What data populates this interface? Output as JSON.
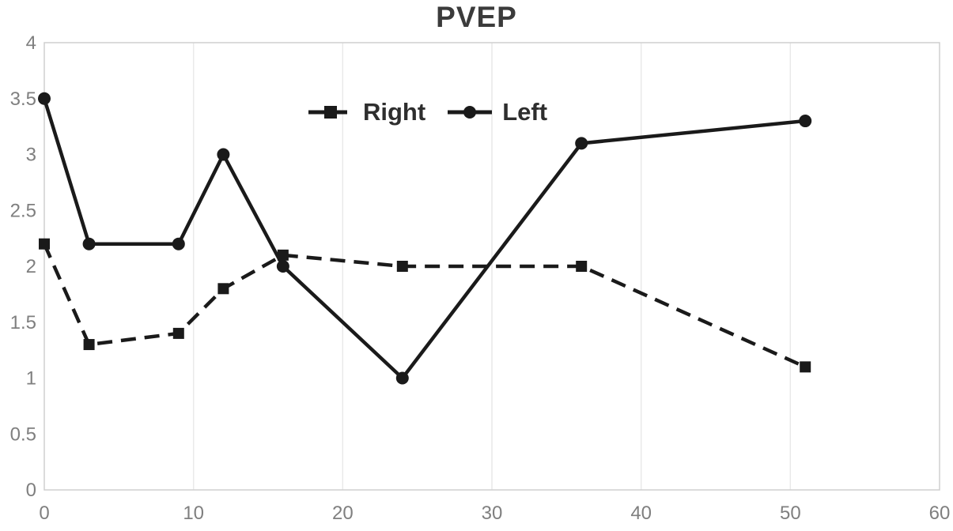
{
  "chart_data": {
    "type": "line",
    "title": "PVEP",
    "x": [
      0,
      3,
      9,
      12,
      16,
      24,
      36,
      51
    ],
    "series": [
      {
        "name": "Right",
        "values": [
          2.2,
          1.3,
          1.4,
          1.8,
          2.1,
          2.0,
          2.0,
          1.1
        ],
        "line_style": "dashed",
        "marker": "square"
      },
      {
        "name": "Left",
        "values": [
          3.5,
          2.2,
          2.2,
          3.0,
          2.0,
          1.0,
          3.1,
          3.3
        ],
        "line_style": "solid",
        "marker": "circle"
      }
    ],
    "xlim": [
      0,
      60
    ],
    "ylim": [
      0,
      4
    ],
    "x_ticks": [
      0,
      10,
      20,
      30,
      40,
      50,
      60
    ],
    "y_ticks": [
      0,
      0.5,
      1,
      1.5,
      2,
      2.5,
      3,
      3.5,
      4
    ],
    "grid": "vertical-only",
    "legend_position": "inside-top-center",
    "colors": {
      "series": "#1a1a1a",
      "axis_labels": "#7f7f7f",
      "grid": "#e9e9e9",
      "border": "#cfcfcf",
      "title": "#3b3b3b",
      "legend_text": "#2e2e2e",
      "background": "#ffffff"
    }
  }
}
